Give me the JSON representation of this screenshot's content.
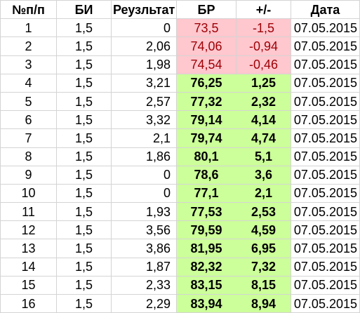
{
  "headers": {
    "num": "№п/п",
    "bi": "БИ",
    "result": "Реузльтат",
    "br": "БР",
    "diff": "+/-",
    "date": "Дата"
  },
  "colors": {
    "negative_fill": "#ffc7ce",
    "negative_text": "#9c0006",
    "positive_fill": "#ccff99",
    "gridline": "#d4d4d4"
  },
  "rows": [
    {
      "num": "1",
      "bi": "1,5",
      "result": "0",
      "br": "73,5",
      "diff": "-1,5",
      "date": "07.05.2015",
      "status": "negative"
    },
    {
      "num": "2",
      "bi": "1,5",
      "result": "2,06",
      "br": "74,06",
      "diff": "-0,94",
      "date": "07.05.2015",
      "status": "negative"
    },
    {
      "num": "3",
      "bi": "1,5",
      "result": "1,98",
      "br": "74,54",
      "diff": "-0,46",
      "date": "07.05.2015",
      "status": "negative"
    },
    {
      "num": "4",
      "bi": "1,5",
      "result": "3,21",
      "br": "76,25",
      "diff": "1,25",
      "date": "07.05.2015",
      "status": "positive"
    },
    {
      "num": "5",
      "bi": "1,5",
      "result": "2,57",
      "br": "77,32",
      "diff": "2,32",
      "date": "07.05.2015",
      "status": "positive"
    },
    {
      "num": "6",
      "bi": "1,5",
      "result": "3,32",
      "br": "79,14",
      "diff": "4,14",
      "date": "07.05.2015",
      "status": "positive"
    },
    {
      "num": "7",
      "bi": "1,5",
      "result": "2,1",
      "br": "79,74",
      "diff": "4,74",
      "date": "07.05.2015",
      "status": "positive"
    },
    {
      "num": "8",
      "bi": "1,5",
      "result": "1,86",
      "br": "80,1",
      "diff": "5,1",
      "date": "07.05.2015",
      "status": "positive"
    },
    {
      "num": "9",
      "bi": "1,5",
      "result": "0",
      "br": "78,6",
      "diff": "3,6",
      "date": "07.05.2015",
      "status": "positive"
    },
    {
      "num": "10",
      "bi": "1,5",
      "result": "0",
      "br": "77,1",
      "diff": "2,1",
      "date": "07.05.2015",
      "status": "positive"
    },
    {
      "num": "11",
      "bi": "1,5",
      "result": "1,93",
      "br": "77,53",
      "diff": "2,53",
      "date": "07.05.2015",
      "status": "positive"
    },
    {
      "num": "12",
      "bi": "1,5",
      "result": "3,56",
      "br": "79,59",
      "diff": "4,59",
      "date": "07.05.2015",
      "status": "positive"
    },
    {
      "num": "13",
      "bi": "1,5",
      "result": "3,86",
      "br": "81,95",
      "diff": "6,95",
      "date": "07.05.2015",
      "status": "positive"
    },
    {
      "num": "14",
      "bi": "1,5",
      "result": "1,87",
      "br": "82,32",
      "diff": "7,32",
      "date": "07.05.2015",
      "status": "positive"
    },
    {
      "num": "15",
      "bi": "1,5",
      "result": "2,33",
      "br": "83,15",
      "diff": "8,15",
      "date": "07.05.2015",
      "status": "positive"
    },
    {
      "num": "16",
      "bi": "1,5",
      "result": "2,29",
      "br": "83,94",
      "diff": "8,94",
      "date": "07.05.2015",
      "status": "positive"
    }
  ]
}
